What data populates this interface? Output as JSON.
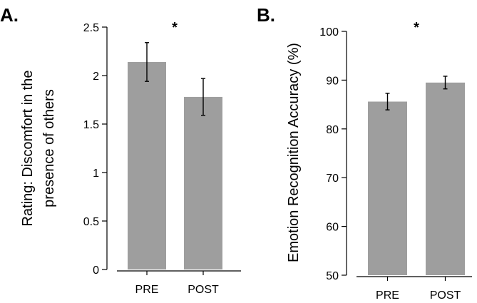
{
  "chart_data": [
    {
      "panel": "A.",
      "type": "bar",
      "categories": [
        "PRE",
        "POST"
      ],
      "values": [
        2.14,
        1.78
      ],
      "errors": [
        0.2,
        0.19
      ],
      "ylabel_lines": [
        "Rating: Discomfort in the",
        "presence of others"
      ],
      "ylim": [
        0,
        2.5
      ],
      "ytick_values": [
        0,
        0.5,
        1,
        1.5,
        2,
        2.5
      ],
      "ytick_labels": [
        "0",
        "0.5",
        "1",
        "1.5",
        "2",
        "2.5"
      ],
      "significance": "*",
      "bar_color": "#9e9e9e"
    },
    {
      "panel": "B.",
      "type": "bar",
      "categories": [
        "PRE",
        "POST"
      ],
      "values": [
        85.6,
        89.5
      ],
      "errors": [
        1.7,
        1.3
      ],
      "ylabel_lines": [
        "Emotion Recognition Accuracy (%)"
      ],
      "ylim": [
        50,
        100
      ],
      "ytick_values": [
        50,
        60,
        70,
        80,
        90,
        100
      ],
      "ytick_labels": [
        "50",
        "60",
        "70",
        "80",
        "90",
        "100"
      ],
      "significance": "*",
      "bar_color": "#9e9e9e"
    }
  ]
}
